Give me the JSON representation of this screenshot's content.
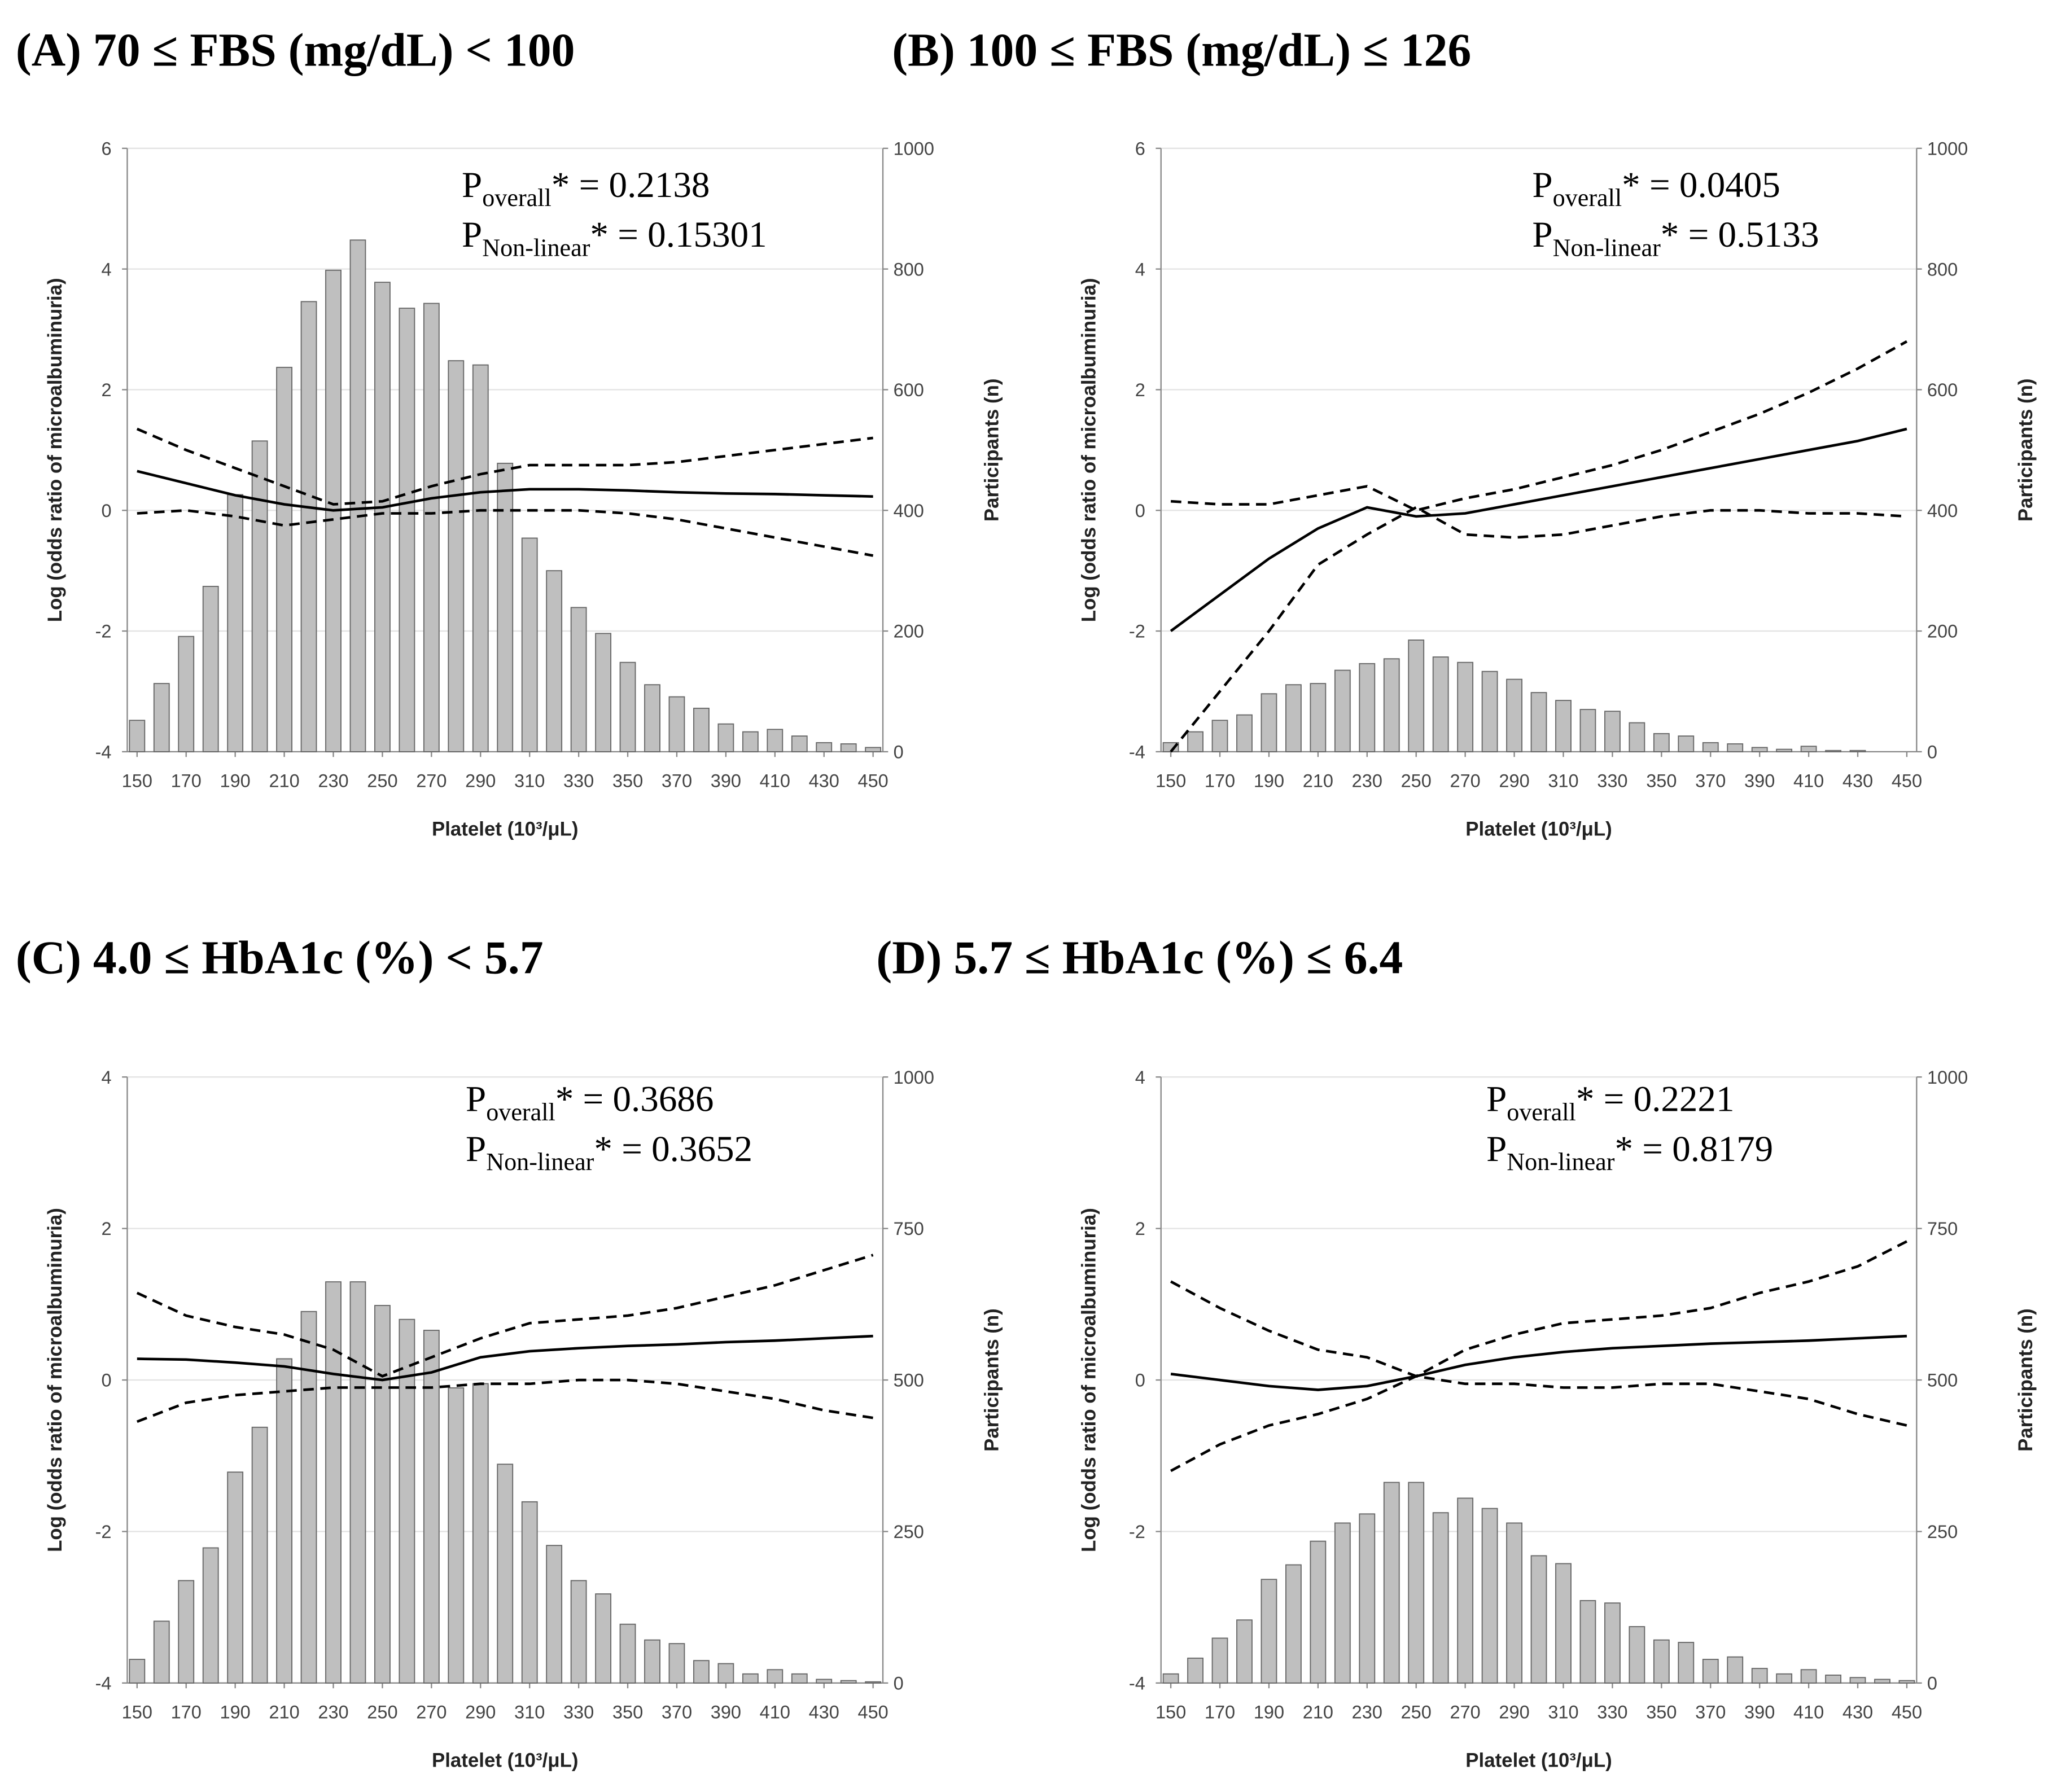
{
  "chart_data": [
    {
      "type": "combo",
      "title": "(A) 70 ≤ FBS (mg/dL) < 100",
      "annotations": [
        {
          "symbol": "P",
          "subscript": "overall",
          "text": "* = 0.2138"
        },
        {
          "symbol": "P",
          "subscript": "Non-linear",
          "text": "* = 0.15301"
        }
      ],
      "xlabel": "Platelet (10³/μL)",
      "ylabel": "Log (odds ratio of microalbuminuria)",
      "y2label": "Participants (n)",
      "xlim": [
        146,
        454
      ],
      "xticks": [
        150,
        170,
        190,
        210,
        230,
        250,
        270,
        290,
        310,
        330,
        350,
        370,
        390,
        410,
        430,
        450
      ],
      "ylim": [
        -4,
        6
      ],
      "yticks": [
        -4,
        -2,
        0,
        2,
        4,
        6
      ],
      "y2lim": [
        0,
        1000
      ],
      "y2ticks": [
        0,
        200,
        400,
        600,
        800,
        1000
      ],
      "grid": true,
      "series": [
        {
          "type": "bar",
          "axis": "y2",
          "color": "#bfbfbf",
          "x": [
            150,
            160,
            170,
            180,
            190,
            200,
            210,
            220,
            230,
            240,
            250,
            260,
            270,
            280,
            290,
            300,
            310,
            320,
            330,
            340,
            350,
            360,
            370,
            380,
            390,
            400,
            410,
            420,
            430,
            440,
            450
          ],
          "values": [
            52,
            113,
            191,
            274,
            426,
            515,
            637,
            746,
            798,
            848,
            778,
            735,
            743,
            648,
            641,
            478,
            354,
            300,
            239,
            196,
            148,
            111,
            91,
            72,
            46,
            33,
            37,
            26,
            15,
            13,
            7
          ]
        },
        {
          "type": "line",
          "axis": "y",
          "color": "#000",
          "dashed": false,
          "x": [
            150,
            170,
            190,
            210,
            230,
            250,
            270,
            290,
            310,
            330,
            350,
            370,
            390,
            410,
            430,
            450
          ],
          "values": [
            0.65,
            0.45,
            0.25,
            0.1,
            0,
            0.05,
            0.2,
            0.3,
            0.35,
            0.35,
            0.33,
            0.3,
            0.28,
            0.27,
            0.25,
            0.23
          ]
        },
        {
          "type": "line",
          "axis": "y",
          "color": "#000",
          "dashed": true,
          "x": [
            150,
            170,
            190,
            210,
            230,
            250,
            270,
            290,
            310,
            330,
            350,
            370,
            390,
            410,
            430,
            450
          ],
          "values": [
            1.35,
            1.0,
            0.7,
            0.4,
            0.1,
            0.15,
            0.4,
            0.6,
            0.75,
            0.75,
            0.75,
            0.8,
            0.9,
            1.0,
            1.1,
            1.2
          ]
        },
        {
          "type": "line",
          "axis": "y",
          "color": "#000",
          "dashed": true,
          "x": [
            150,
            170,
            190,
            210,
            230,
            250,
            270,
            290,
            310,
            330,
            350,
            370,
            390,
            410,
            430,
            450
          ],
          "values": [
            -0.05,
            0,
            -0.1,
            -0.25,
            -0.15,
            -0.05,
            -0.05,
            0,
            0,
            0,
            -0.05,
            -0.15,
            -0.3,
            -0.45,
            -0.6,
            -0.75
          ]
        }
      ]
    },
    {
      "type": "combo",
      "title": "(B) 100 ≤ FBS (mg/dL) ≤ 126",
      "annotations": [
        {
          "symbol": "P",
          "subscript": "overall",
          "text": "* = 0.0405"
        },
        {
          "symbol": "P",
          "subscript": "Non-linear",
          "text": "* = 0.5133"
        }
      ],
      "xlabel": "Platelet (10³/μL)",
      "ylabel": "Log (odds ratio of microalbuminuria)",
      "y2label": "Participants (n)",
      "xlim": [
        146,
        454
      ],
      "xticks": [
        150,
        170,
        190,
        210,
        230,
        250,
        270,
        290,
        310,
        330,
        350,
        370,
        390,
        410,
        430,
        450
      ],
      "ylim": [
        -4,
        6
      ],
      "yticks": [
        -4,
        -2,
        0,
        2,
        4,
        6
      ],
      "y2lim": [
        0,
        1000
      ],
      "y2ticks": [
        0,
        200,
        400,
        600,
        800,
        1000
      ],
      "grid": true,
      "series": [
        {
          "type": "bar",
          "axis": "y2",
          "color": "#bfbfbf",
          "x": [
            150,
            160,
            170,
            180,
            190,
            200,
            210,
            220,
            230,
            240,
            250,
            260,
            270,
            280,
            290,
            300,
            310,
            320,
            330,
            340,
            350,
            360,
            370,
            380,
            390,
            400,
            410,
            420,
            430,
            440,
            450
          ],
          "values": [
            15,
            33,
            52,
            61,
            96,
            111,
            113,
            135,
            146,
            154,
            185,
            157,
            148,
            133,
            120,
            98,
            85,
            70,
            67,
            48,
            30,
            26,
            15,
            13,
            7,
            4,
            9,
            2,
            2,
            0,
            0
          ]
        },
        {
          "type": "line",
          "axis": "y",
          "color": "#000",
          "dashed": false,
          "x": [
            150,
            170,
            190,
            210,
            230,
            250,
            270,
            290,
            310,
            330,
            350,
            370,
            390,
            410,
            430,
            450
          ],
          "values": [
            -2.0,
            -1.4,
            -0.8,
            -0.3,
            0.05,
            -0.1,
            -0.05,
            0.1,
            0.25,
            0.4,
            0.55,
            0.7,
            0.85,
            1.0,
            1.15,
            1.35
          ]
        },
        {
          "type": "line",
          "axis": "y",
          "color": "#000",
          "dashed": true,
          "x": [
            150,
            170,
            190,
            210,
            230,
            250,
            270,
            290,
            310,
            330,
            350,
            370,
            390,
            410,
            430,
            450
          ],
          "values": [
            0.15,
            0.1,
            0.1,
            0.25,
            0.4,
            0,
            0.2,
            0.35,
            0.55,
            0.75,
            1.0,
            1.3,
            1.6,
            1.95,
            2.35,
            2.8
          ]
        },
        {
          "type": "line",
          "axis": "y",
          "color": "#000",
          "dashed": true,
          "x": [
            150,
            170,
            190,
            210,
            230,
            250,
            270,
            290,
            310,
            330,
            350,
            370,
            390,
            410,
            430,
            450
          ],
          "values": [
            -4.0,
            -3.0,
            -2.0,
            -0.9,
            -0.4,
            0.05,
            -0.4,
            -0.45,
            -0.4,
            -0.25,
            -0.1,
            0,
            0,
            -0.05,
            -0.05,
            -0.1
          ]
        }
      ]
    },
    {
      "type": "combo",
      "title": "(C) 4.0 ≤ HbA1c (%) < 5.7",
      "annotations": [
        {
          "symbol": "P",
          "subscript": "overall",
          "text": "* = 0.3686"
        },
        {
          "symbol": "P",
          "subscript": "Non-linear",
          "text": "* = 0.3652"
        }
      ],
      "xlabel": "Platelet (10³/μL)",
      "ylabel": "Log (odds ratio of microalbuminuria)",
      "y2label": "Participants (n)",
      "xlim": [
        146,
        454
      ],
      "xticks": [
        150,
        170,
        190,
        210,
        230,
        250,
        270,
        290,
        310,
        330,
        350,
        370,
        390,
        410,
        430,
        450
      ],
      "ylim": [
        -4,
        4
      ],
      "yticks": [
        -4,
        -2,
        0,
        2,
        4
      ],
      "y2lim": [
        0,
        1000
      ],
      "y2ticks": [
        0,
        250,
        500,
        750,
        1000
      ],
      "grid": true,
      "series": [
        {
          "type": "bar",
          "axis": "y2",
          "color": "#bfbfbf",
          "x": [
            150,
            160,
            170,
            180,
            190,
            200,
            210,
            220,
            230,
            240,
            250,
            260,
            270,
            280,
            290,
            300,
            310,
            320,
            330,
            340,
            350,
            360,
            370,
            380,
            390,
            400,
            410,
            420,
            430,
            440,
            450
          ],
          "values": [
            39,
            102,
            169,
            223,
            348,
            422,
            535,
            613,
            662,
            662,
            623,
            600,
            582,
            487,
            494,
            361,
            299,
            227,
            169,
            147,
            97,
            71,
            65,
            37,
            32,
            15,
            22,
            15,
            6,
            4,
            2
          ]
        },
        {
          "type": "line",
          "axis": "y",
          "color": "#000",
          "dashed": false,
          "x": [
            150,
            170,
            190,
            210,
            230,
            250,
            270,
            290,
            310,
            330,
            350,
            370,
            390,
            410,
            430,
            450
          ],
          "values": [
            0.28,
            0.27,
            0.23,
            0.18,
            0.08,
            0,
            0.1,
            0.3,
            0.38,
            0.42,
            0.45,
            0.47,
            0.5,
            0.52,
            0.55,
            0.58
          ]
        },
        {
          "type": "line",
          "axis": "y",
          "color": "#000",
          "dashed": true,
          "x": [
            150,
            170,
            190,
            210,
            230,
            250,
            270,
            290,
            310,
            330,
            350,
            370,
            390,
            410,
            430,
            450
          ],
          "values": [
            1.15,
            0.85,
            0.7,
            0.6,
            0.4,
            0.05,
            0.3,
            0.55,
            0.75,
            0.8,
            0.85,
            0.95,
            1.1,
            1.25,
            1.45,
            1.65
          ]
        },
        {
          "type": "line",
          "axis": "y",
          "color": "#000",
          "dashed": true,
          "x": [
            150,
            170,
            190,
            210,
            230,
            250,
            270,
            290,
            310,
            330,
            350,
            370,
            390,
            410,
            430,
            450
          ],
          "values": [
            -0.55,
            -0.3,
            -0.2,
            -0.15,
            -0.1,
            -0.1,
            -0.1,
            -0.05,
            -0.05,
            0,
            0,
            -0.05,
            -0.15,
            -0.25,
            -0.4,
            -0.5
          ]
        }
      ]
    },
    {
      "type": "combo",
      "title": "(D) 5.7 ≤ HbA1c (%) ≤ 6.4",
      "annotations": [
        {
          "symbol": "P",
          "subscript": "overall",
          "text": "* = 0.2221"
        },
        {
          "symbol": "P",
          "subscript": "Non-linear",
          "text": "* = 0.8179"
        }
      ],
      "xlabel": "Platelet (10³/μL)",
      "ylabel": "Log (odds ratio of microalbuminuria)",
      "y2label": "Participants (n)",
      "xlim": [
        146,
        454
      ],
      "xticks": [
        150,
        170,
        190,
        210,
        230,
        250,
        270,
        290,
        310,
        330,
        350,
        370,
        390,
        410,
        430,
        450
      ],
      "ylim": [
        -4,
        4
      ],
      "yticks": [
        -4,
        -2,
        0,
        2,
        4
      ],
      "y2lim": [
        0,
        1000
      ],
      "y2ticks": [
        0,
        250,
        500,
        750,
        1000
      ],
      "grid": true,
      "series": [
        {
          "type": "bar",
          "axis": "y2",
          "color": "#bfbfbf",
          "x": [
            150,
            160,
            170,
            180,
            190,
            200,
            210,
            220,
            230,
            240,
            250,
            260,
            270,
            280,
            290,
            300,
            310,
            320,
            330,
            340,
            350,
            360,
            370,
            380,
            390,
            400,
            410,
            420,
            430,
            440,
            450
          ],
          "values": [
            15,
            41,
            74,
            104,
            171,
            195,
            234,
            264,
            279,
            331,
            331,
            281,
            305,
            288,
            264,
            210,
            197,
            136,
            132,
            93,
            71,
            67,
            39,
            43,
            24,
            15,
            22,
            13,
            9,
            6,
            4
          ]
        },
        {
          "type": "line",
          "axis": "y",
          "color": "#000",
          "dashed": false,
          "x": [
            150,
            170,
            190,
            210,
            230,
            250,
            270,
            290,
            310,
            330,
            350,
            370,
            390,
            410,
            430,
            450
          ],
          "values": [
            0.08,
            0,
            -0.08,
            -0.13,
            -0.08,
            0.05,
            0.2,
            0.3,
            0.37,
            0.42,
            0.45,
            0.48,
            0.5,
            0.52,
            0.55,
            0.58
          ]
        },
        {
          "type": "line",
          "axis": "y",
          "color": "#000",
          "dashed": true,
          "x": [
            150,
            170,
            190,
            210,
            230,
            250,
            270,
            290,
            310,
            330,
            350,
            370,
            390,
            410,
            430,
            450
          ],
          "values": [
            1.3,
            0.95,
            0.65,
            0.4,
            0.3,
            0.05,
            -0.05,
            -0.05,
            -0.1,
            -0.1,
            -0.05,
            -0.05,
            -0.15,
            -0.25,
            -0.45,
            -0.6
          ]
        },
        {
          "type": "line",
          "axis": "y",
          "color": "#000",
          "dashed": true,
          "x": [
            150,
            170,
            190,
            210,
            230,
            250,
            270,
            290,
            310,
            330,
            350,
            370,
            390,
            410,
            430,
            450
          ],
          "values": [
            -1.2,
            -0.85,
            -0.6,
            -0.45,
            -0.25,
            0.05,
            0.4,
            0.6,
            0.75,
            0.8,
            0.85,
            0.95,
            1.15,
            1.3,
            1.5,
            1.83
          ]
        }
      ]
    }
  ]
}
